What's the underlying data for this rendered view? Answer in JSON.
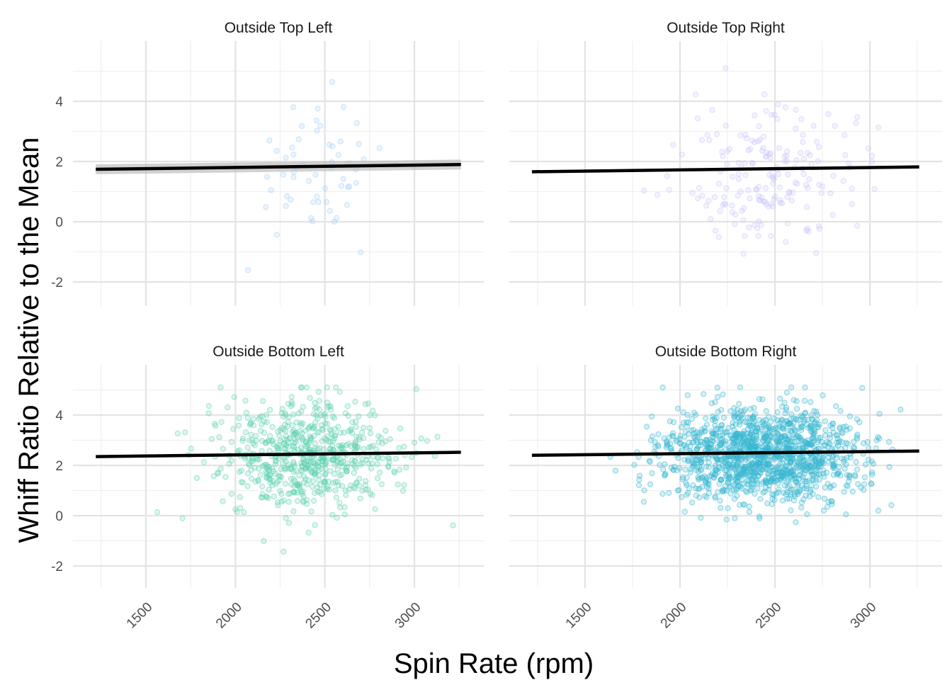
{
  "chart_data": {
    "type": "scatter",
    "xlabel": "Spin Rate (rpm)",
    "ylabel": "Whiff Ratio Relative to the Mean",
    "xlim": [
      1200,
      3280
    ],
    "x_ticks": [
      1500,
      2000,
      2500,
      3000
    ],
    "y_ticks": [
      -2,
      0,
      2,
      4
    ],
    "grid": true,
    "legend": "none",
    "panels": [
      {
        "title": "Outside Top Left",
        "color": "#a6cef5",
        "ylim": [
          -2.7,
          5.3
        ],
        "n_points": 60,
        "x_center": 2450,
        "x_spread": 190,
        "y_center": 1.7,
        "y_spread": 1.2,
        "trend": {
          "x": [
            1220,
            3260
          ],
          "y": [
            1.74,
            1.9
          ]
        },
        "confidence_band": true
      },
      {
        "title": "Outside Top Right",
        "color": "#c9c6fa",
        "ylim": [
          -2.7,
          5.3
        ],
        "n_points": 190,
        "x_center": 2480,
        "x_spread": 230,
        "y_center": 1.6,
        "y_spread": 1.15,
        "trend": {
          "x": [
            1220,
            3260
          ],
          "y": [
            1.66,
            1.82
          ]
        },
        "confidence_band": false
      },
      {
        "title": "Outside Bottom Left",
        "color": "#5ed1b0",
        "ylim": [
          -2.7,
          5.3
        ],
        "n_points": 650,
        "x_center": 2410,
        "x_spread": 250,
        "y_center": 2.35,
        "y_spread": 1.15,
        "trend": {
          "x": [
            1220,
            3260
          ],
          "y": [
            2.35,
            2.52
          ]
        },
        "confidence_band": false
      },
      {
        "title": "Outside Bottom Right",
        "color": "#38b8d2",
        "ylim": [
          -2.7,
          5.3
        ],
        "n_points": 1400,
        "x_center": 2430,
        "x_spread": 250,
        "y_center": 2.45,
        "y_spread": 0.95,
        "trend": {
          "x": [
            1220,
            3260
          ],
          "y": [
            2.4,
            2.57
          ]
        },
        "confidence_band": false
      }
    ]
  }
}
